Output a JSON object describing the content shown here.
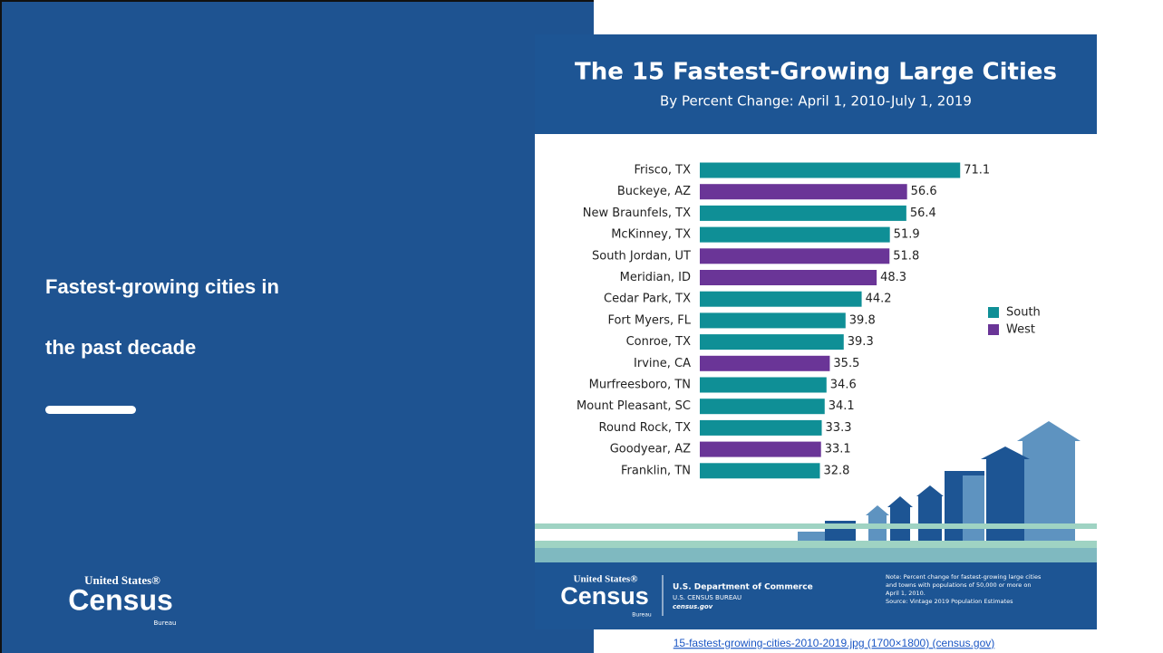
{
  "slide": {
    "title_lines": [
      "Fastest-growing cities in",
      "the past decade"
    ],
    "logo": {
      "top": "United States®",
      "main": "Census",
      "bottom": "Bureau"
    },
    "link": "15-fastest-growing-cities-2010-2019.jpg (1700×1800) (census.gov)"
  },
  "footer": {
    "logo": {
      "top": "United States®",
      "main": "Census",
      "bottom": "Bureau"
    },
    "dept": "U.S. Department of Commerce",
    "bureau": "U.S. CENSUS BUREAU",
    "site": "census.gov",
    "note_lines": [
      "Note: Percent change for fastest-growing large cities",
      "and towns with populations of 50,000 or more on",
      "April 1, 2010.",
      "Source: Vintage 2019 Population Estimates"
    ]
  },
  "chart_data": {
    "type": "bar",
    "orientation": "horizontal",
    "title": "The 15 Fastest-Growing Large Cities",
    "subtitle": "By Percent Change: April 1, 2010-July 1, 2019",
    "categories": [
      "Frisco, TX",
      "Buckeye, AZ",
      "New Braunfels, TX",
      "McKinney, TX",
      "South Jordan, UT",
      "Meridian, ID",
      "Cedar Park, TX",
      "Fort Myers, FL",
      "Conroe, TX",
      "Irvine, CA",
      "Murfreesboro, TN",
      "Mount Pleasant, SC",
      "Round Rock, TX",
      "Goodyear, AZ",
      "Franklin, TN"
    ],
    "series": [
      {
        "name": "South",
        "color": "#0f8f96",
        "values": [
          71.1,
          null,
          56.4,
          51.9,
          null,
          null,
          44.2,
          39.8,
          39.3,
          null,
          34.6,
          34.1,
          33.3,
          null,
          32.8
        ]
      },
      {
        "name": "West",
        "color": "#6a3597",
        "values": [
          null,
          56.6,
          null,
          null,
          51.8,
          48.3,
          null,
          null,
          null,
          35.5,
          null,
          null,
          null,
          33.1,
          null
        ]
      }
    ],
    "legend": "right"
  }
}
